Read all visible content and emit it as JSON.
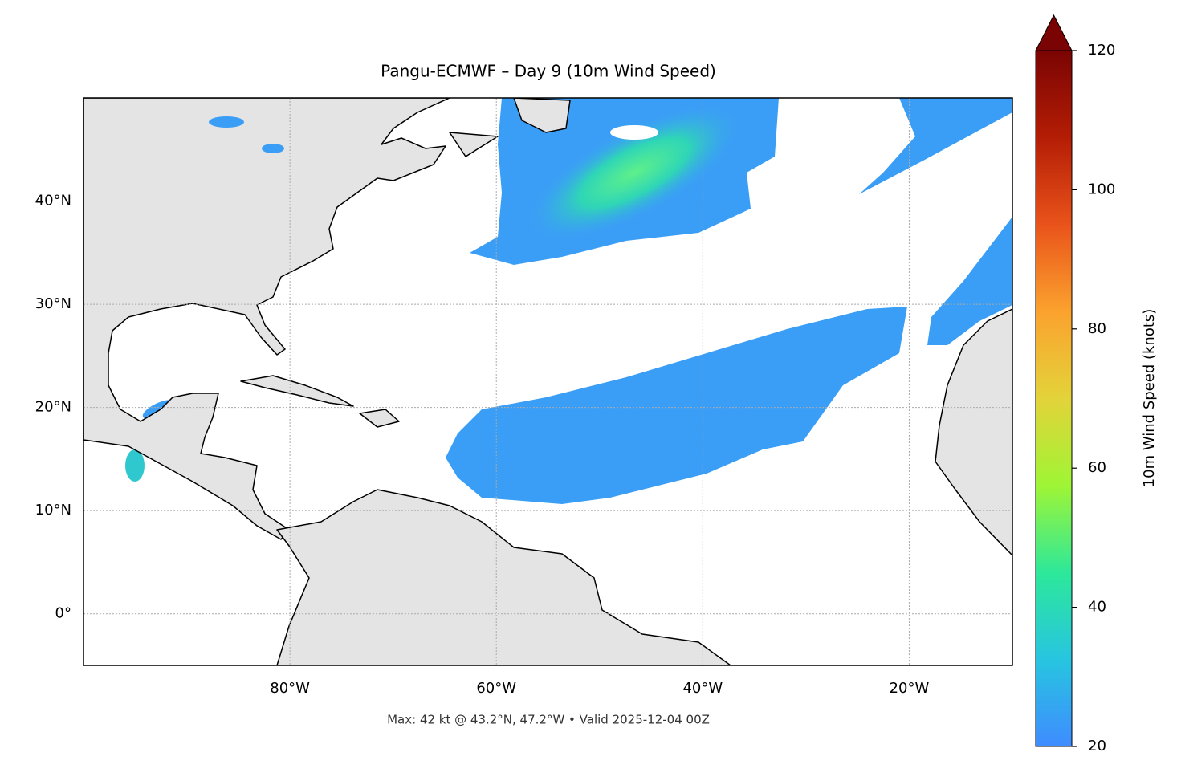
{
  "chart_data": {
    "type": "map",
    "title": "Pangu-ECMWF – Day 9 (10m Wind Speed)",
    "subtitle": "Max: 42 kt @ 43.2°N, 47.2°W • Valid 2025-12-04 00Z",
    "xlim": [
      -100,
      -10
    ],
    "xticks": [
      {
        "value": -80,
        "label": "80°W"
      },
      {
        "value": -60,
        "label": "60°W"
      },
      {
        "value": -40,
        "label": "40°W"
      },
      {
        "value": -20,
        "label": "20°W"
      }
    ],
    "ylim": [
      -5,
      50
    ],
    "yticks": [
      {
        "value": 0,
        "label": "0°"
      },
      {
        "value": 10,
        "label": "10°N"
      },
      {
        "value": 20,
        "label": "20°N"
      },
      {
        "value": 30,
        "label": "30°N"
      },
      {
        "value": 40,
        "label": "40°N"
      }
    ],
    "grid": true,
    "colorbar": {
      "label": "10m Wind Speed (knots)",
      "lim": [
        20,
        120
      ],
      "ticks": [
        20,
        40,
        60,
        80,
        100,
        120
      ],
      "extend": "max",
      "colors": [
        "#3f8cff",
        "#27c5e0",
        "#2de89a",
        "#9ff535",
        "#e3d33a",
        "#fba22e",
        "#e9531a",
        "#b41d05",
        "#7a0403"
      ]
    }
  }
}
